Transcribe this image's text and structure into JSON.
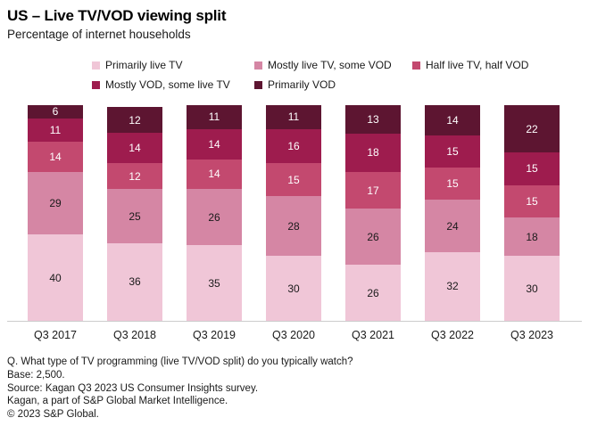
{
  "header": {
    "title": "US – Live TV/VOD viewing split",
    "subtitle": "Percentage of internet households"
  },
  "chart_data": {
    "type": "bar",
    "stacked": true,
    "orientation": "vertical",
    "unit": "percent",
    "value_axis_max": 100,
    "grid": false,
    "legend_position": "top",
    "categories": [
      "Q3 2017",
      "Q3 2018",
      "Q3 2019",
      "Q3 2020",
      "Q3 2021",
      "Q3 2022",
      "Q3 2023"
    ],
    "series": [
      {
        "name": "Primarily live TV",
        "color": "#f0c6d7",
        "label_color": "#1a1a1a",
        "values": [
          40,
          36,
          35,
          30,
          26,
          32,
          30
        ]
      },
      {
        "name": "Mostly live TV, some VOD",
        "color": "#d586a4",
        "label_color": "#1a1a1a",
        "values": [
          29,
          25,
          26,
          28,
          26,
          24,
          18
        ]
      },
      {
        "name": "Half live TV, half VOD",
        "color": "#c3496f",
        "label_color": "#ffffff",
        "values": [
          14,
          12,
          14,
          15,
          17,
          15,
          15
        ]
      },
      {
        "name": "Mostly VOD, some live TV",
        "color": "#9e1c4e",
        "label_color": "#ffffff",
        "values": [
          11,
          14,
          14,
          16,
          18,
          15,
          15
        ]
      },
      {
        "name": "Primarily VOD",
        "color": "#5d1531",
        "label_color": "#ffffff",
        "values": [
          6,
          12,
          11,
          11,
          13,
          14,
          22
        ]
      }
    ]
  },
  "footer": {
    "lines": [
      "Q. What type of TV programming (live TV/VOD split) do you typically watch?",
      "Base: 2,500.",
      "Source: Kagan Q3 2023 US Consumer Insights survey.",
      "Kagan, a part of S&P Global Market Intelligence.",
      "© 2023 S&P Global."
    ]
  }
}
